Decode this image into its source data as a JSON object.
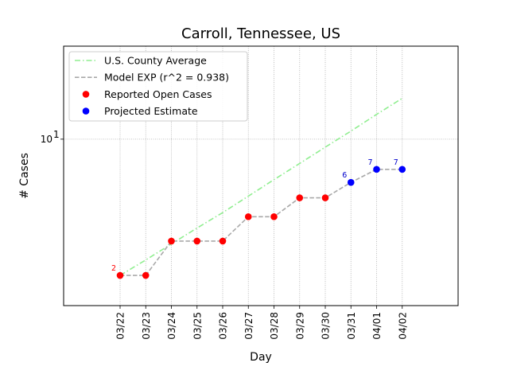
{
  "chart_data": {
    "type": "line",
    "title": "Carroll, Tennessee, US",
    "xlabel": "Day",
    "ylabel": "# Cases",
    "yscale": "log",
    "ylim": [
      1.4,
      30
    ],
    "y_ticks": [
      {
        "value": 10,
        "label": "10",
        "sup": "1",
        "base": "10"
      }
    ],
    "grid": true,
    "legend_position": "top-left",
    "categories": [
      "03/22",
      "03/23",
      "03/24",
      "03/25",
      "03/26",
      "03/27",
      "03/28",
      "03/29",
      "03/30",
      "03/31",
      "04/01",
      "04/02"
    ],
    "series": [
      {
        "name": "U.S. County Average",
        "style": "dashdot",
        "color": "#90ee90",
        "values": [
          2.0,
          2.4,
          2.9,
          3.5,
          4.2,
          5.1,
          6.2,
          7.5,
          9.1,
          11.0,
          13.4,
          16.2
        ]
      },
      {
        "name": "Model EXP (r^2 = 0.938)",
        "style": "dashed",
        "color": "#a9a9a9",
        "values": [
          2,
          2,
          3,
          3,
          3,
          4,
          4,
          5,
          5,
          6,
          7,
          7
        ]
      },
      {
        "name": "Reported Open Cases",
        "style": "marker",
        "color": "#ff0000",
        "x": [
          "03/22",
          "03/23",
          "03/24",
          "03/25",
          "03/26",
          "03/27",
          "03/28",
          "03/29",
          "03/30"
        ],
        "values": [
          2,
          2,
          3,
          3,
          3,
          4,
          4,
          5,
          5
        ]
      },
      {
        "name": "Projected Estimate",
        "style": "marker",
        "color": "#0000ff",
        "x": [
          "03/31",
          "04/01",
          "04/02"
        ],
        "values": [
          6,
          7,
          7
        ]
      }
    ],
    "annotations": [
      {
        "x": "03/22",
        "y": 2,
        "text": "2",
        "color": "#ff0000"
      },
      {
        "x": "03/31",
        "y": 6,
        "text": "6",
        "color": "#0000cc"
      },
      {
        "x": "04/01",
        "y": 7,
        "text": "7",
        "color": "#0000cc"
      },
      {
        "x": "04/02",
        "y": 7,
        "text": "7",
        "color": "#0000cc"
      }
    ]
  }
}
